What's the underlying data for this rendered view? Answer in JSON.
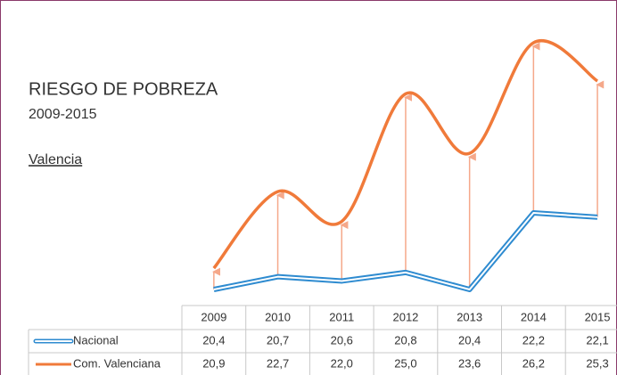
{
  "chart_data": {
    "type": "line",
    "title": "RIESGO DE POBREZA",
    "subtitle": "2009-2015",
    "annotation": "Valencia",
    "categories": [
      "2009",
      "2010",
      "2011",
      "2012",
      "2013",
      "2014",
      "2015"
    ],
    "series": [
      {
        "name": "Nacional",
        "color": "#2e8bd0",
        "values": [
          20.4,
          20.7,
          20.6,
          20.8,
          20.4,
          22.2,
          22.1
        ],
        "value_labels": [
          "20,4",
          "20,7",
          "20,6",
          "20,8",
          "20,4",
          "22,2",
          "22,1"
        ]
      },
      {
        "name": "Com. Valenciana",
        "color": "#f07a3a",
        "values": [
          20.9,
          22.7,
          22.0,
          25.0,
          23.6,
          26.2,
          25.3
        ],
        "value_labels": [
          "20,9",
          "22,7",
          "22,0",
          "25,0",
          "23,6",
          "26,2",
          "25,3"
        ]
      }
    ]
  }
}
